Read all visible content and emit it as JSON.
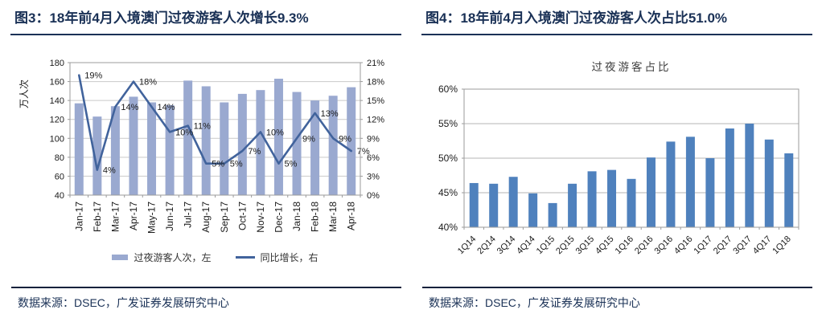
{
  "fig3": {
    "title": "图3：18年前4月入境澳门过夜游客人次增长9.3%",
    "source": "数据来源：DSEC，广发证券发展研究中心"
  },
  "fig4": {
    "title": "图4：18年前4月入境澳门过夜游客人次占比51.0%",
    "source": "数据来源：DSEC，广发证券发展研究中心"
  },
  "chart_data": [
    {
      "id": "fig3-overnight-visitors",
      "type": "bar+line",
      "categories": [
        "Jan-17",
        "Feb-17",
        "Mar-17",
        "Apr-17",
        "May-17",
        "Jun-17",
        "Jul-17",
        "Aug-17",
        "Sep-17",
        "Oct-17",
        "Nov-17",
        "Dec-17",
        "Jan-18",
        "Feb-18",
        "Mar-18",
        "Apr-18"
      ],
      "series": [
        {
          "name": "过夜游客人次，左",
          "type": "bar",
          "axis": "left",
          "values": [
            137,
            123,
            134,
            144,
            138,
            135,
            161,
            155,
            138,
            147,
            151,
            163,
            149,
            140,
            145,
            154
          ]
        },
        {
          "name": "同比增长，右",
          "type": "line",
          "axis": "right",
          "values": [
            19,
            4,
            14,
            18,
            14,
            10,
            11,
            5,
            5,
            7,
            10,
            5,
            9,
            13,
            9,
            7
          ],
          "data_labels": true
        }
      ],
      "left_axis": {
        "title": "万人次",
        "min": 40,
        "max": 180,
        "step": 20
      },
      "right_axis": {
        "min": 0,
        "max": 21,
        "step": 3,
        "unit": "%"
      },
      "grid": true,
      "legend_position": "bottom"
    },
    {
      "id": "fig4-overnight-share",
      "type": "bar",
      "title": "过夜游客占比",
      "categories": [
        "1Q14",
        "2Q14",
        "3Q14",
        "4Q14",
        "1Q15",
        "2Q15",
        "3Q15",
        "4Q15",
        "1Q16",
        "2Q16",
        "3Q16",
        "4Q16",
        "1Q17",
        "2Q17",
        "3Q17",
        "4Q17",
        "1Q18"
      ],
      "values": [
        46.4,
        46.3,
        47.3,
        44.9,
        43.5,
        46.3,
        48.1,
        48.3,
        47.0,
        50.1,
        52.4,
        53.1,
        50.0,
        54.3,
        55.0,
        52.7,
        50.7
      ],
      "ylim": [
        40,
        60
      ],
      "ytick_step": 5,
      "unit": "%",
      "grid": true,
      "legend_position": "none"
    }
  ],
  "colors": {
    "navy_title": "#1A3156",
    "bar_light_blue": "#9AA9D0",
    "line_dark_blue": "#41639C",
    "bar_medium_blue": "#4F81BD",
    "gridline_gray": "#C9C9C9",
    "axis_border_gray": "#9B9B9B",
    "axis_text": "#1A1A1A",
    "chart_title_gray": "#404040",
    "source_rule": "#14213C"
  }
}
